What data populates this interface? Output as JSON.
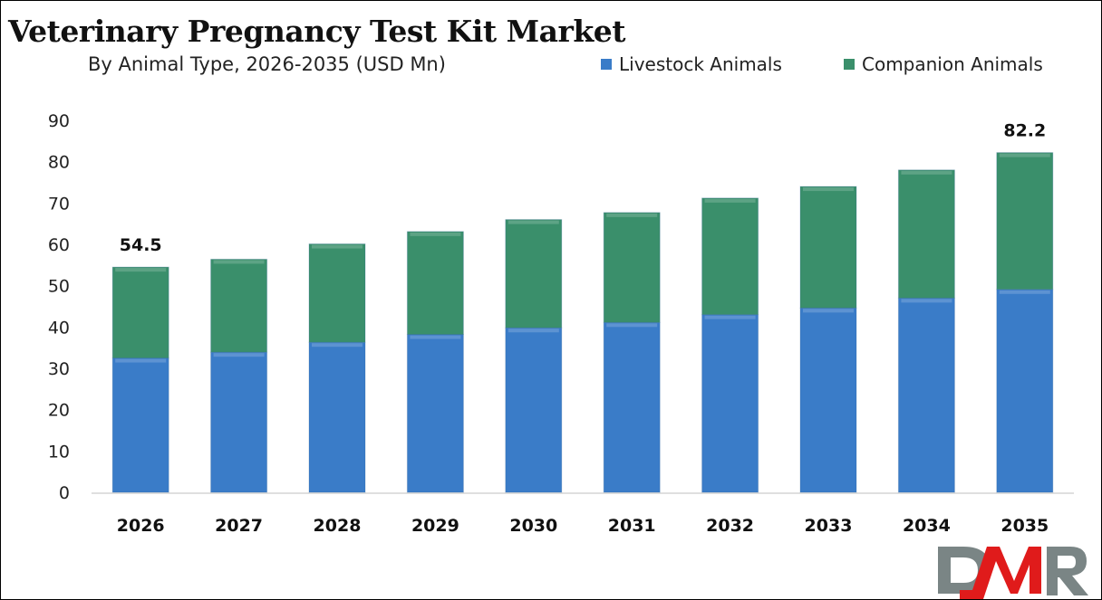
{
  "chart_data": {
    "type": "bar",
    "stacked": true,
    "title": "Veterinary Pregnancy Test Kit Market",
    "subtitle": "By Animal Type, 2026-2035 (USD Mn)",
    "categories": [
      "2026",
      "2027",
      "2028",
      "2029",
      "2030",
      "2031",
      "2032",
      "2033",
      "2034",
      "2035"
    ],
    "series": [
      {
        "name": "Livestock Animals",
        "color": "#3a7cc8",
        "values": [
          32.5,
          33.9,
          36.3,
          38.2,
          39.8,
          41.1,
          43.0,
          44.6,
          47.0,
          49.1
        ]
      },
      {
        "name": "Companion Animals",
        "color": "#3a8f6b",
        "values": [
          22.0,
          22.5,
          23.8,
          24.9,
          26.2,
          26.6,
          28.2,
          29.4,
          31.0,
          33.1
        ]
      }
    ],
    "data_labels": [
      {
        "category": "2026",
        "text": "54.5"
      },
      {
        "category": "2035",
        "text": "82.2"
      }
    ],
    "ylim": [
      0,
      90
    ],
    "yticks": [
      "0",
      "10",
      "20",
      "30",
      "40",
      "50",
      "60",
      "70",
      "80",
      "90"
    ],
    "grid": false,
    "legend_position": "top-right"
  },
  "logo": {
    "text": "DMR",
    "colors": [
      "#7a8585",
      "#e01b1b"
    ]
  }
}
